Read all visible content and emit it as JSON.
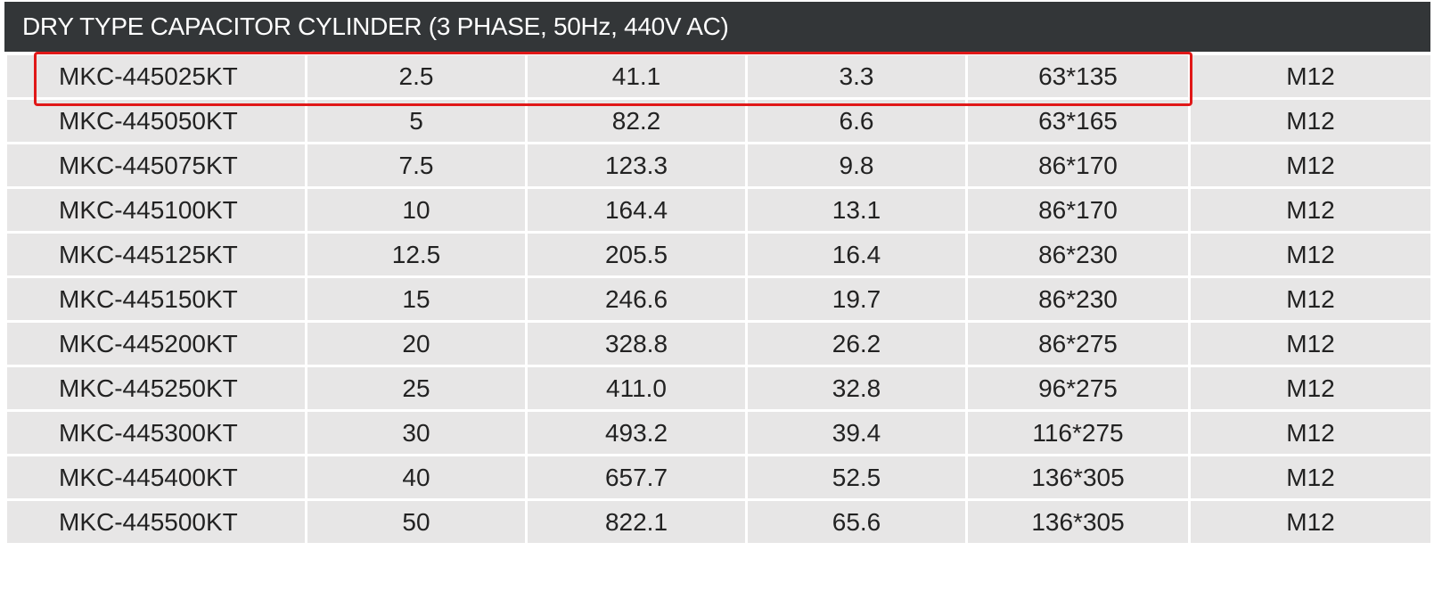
{
  "title": "DRY TYPE CAPACITOR CYLINDER (3 PHASE, 50Hz, 440V AC)",
  "colors": {
    "title_background": "#333638",
    "row_background": "#e7e6e6",
    "highlight_border": "#e01818"
  },
  "highlighted_row": 0,
  "rows": [
    [
      "MKC-445025KT",
      "2.5",
      "41.1",
      "3.3",
      "63*135",
      "M12"
    ],
    [
      "MKC-445050KT",
      "5",
      "82.2",
      "6.6",
      "63*165",
      "M12"
    ],
    [
      "MKC-445075KT",
      "7.5",
      "123.3",
      "9.8",
      "86*170",
      "M12"
    ],
    [
      "MKC-445100KT",
      "10",
      "164.4",
      "13.1",
      "86*170",
      "M12"
    ],
    [
      "MKC-445125KT",
      "12.5",
      "205.5",
      "16.4",
      "86*230",
      "M12"
    ],
    [
      "MKC-445150KT",
      "15",
      "246.6",
      "19.7",
      "86*230",
      "M12"
    ],
    [
      "MKC-445200KT",
      "20",
      "328.8",
      "26.2",
      "86*275",
      "M12"
    ],
    [
      "MKC-445250KT",
      "25",
      "411.0",
      "32.8",
      "96*275",
      "M12"
    ],
    [
      "MKC-445300KT",
      "30",
      "493.2",
      "39.4",
      "116*275",
      "M12"
    ],
    [
      "MKC-445400KT",
      "40",
      "657.7",
      "52.5",
      "136*305",
      "M12"
    ],
    [
      "MKC-445500KT",
      "50",
      "822.1",
      "65.6",
      "136*305",
      "M12"
    ]
  ]
}
